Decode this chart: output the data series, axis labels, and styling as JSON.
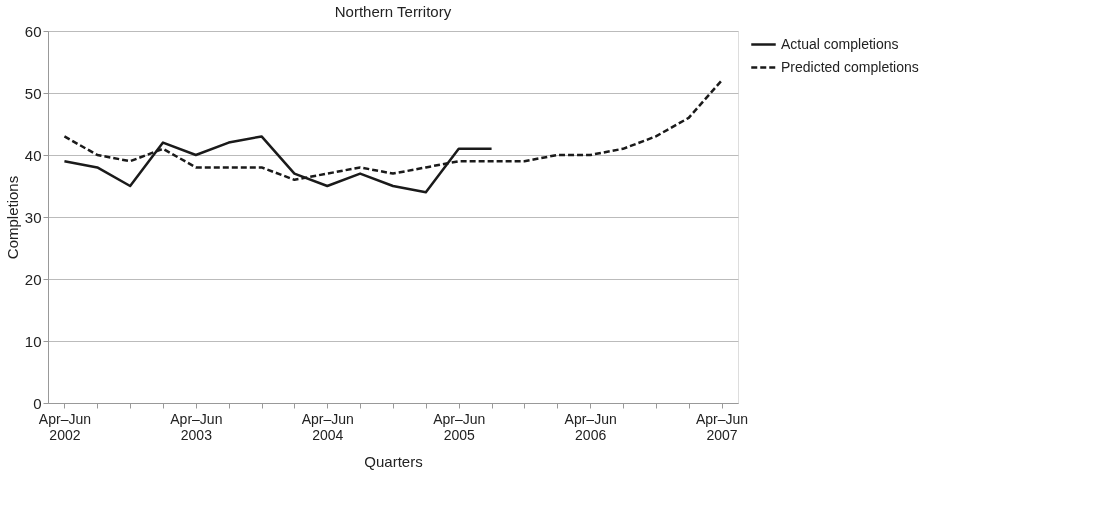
{
  "chart_data": {
    "type": "line",
    "title": "Northern Territory",
    "xlabel": "Quarters",
    "ylabel": "Completions",
    "categories": [
      "Apr–Jun 2002",
      null,
      null,
      null,
      "Apr–Jun 2003",
      null,
      null,
      null,
      "Apr–Jun 2004",
      null,
      null,
      null,
      "Apr–Jun 2005",
      null,
      null,
      null,
      "Apr–Jun 2006",
      null,
      null,
      null,
      "Apr–Jun 2007"
    ],
    "series": [
      {
        "name": "Actual completions",
        "color": "#1a1a1a",
        "line_style": "solid",
        "values": [
          39,
          38,
          35,
          42,
          40,
          42,
          43,
          37,
          35,
          37,
          35,
          34,
          41,
          41,
          null,
          null,
          null,
          null,
          null,
          null,
          null
        ]
      },
      {
        "name": "Predicted completions",
        "color": "#1a1a1a",
        "line_style": "dashed",
        "values": [
          43,
          40,
          39,
          41,
          38,
          38,
          38,
          36,
          37,
          38,
          37,
          38,
          39,
          39,
          39,
          40,
          40,
          41,
          43,
          46,
          52
        ]
      }
    ],
    "ylim": [
      0,
      60
    ],
    "yticks": [
      0,
      10,
      20,
      30,
      40,
      50,
      60
    ],
    "grid": "y",
    "legend": "top right",
    "marker": "none"
  }
}
